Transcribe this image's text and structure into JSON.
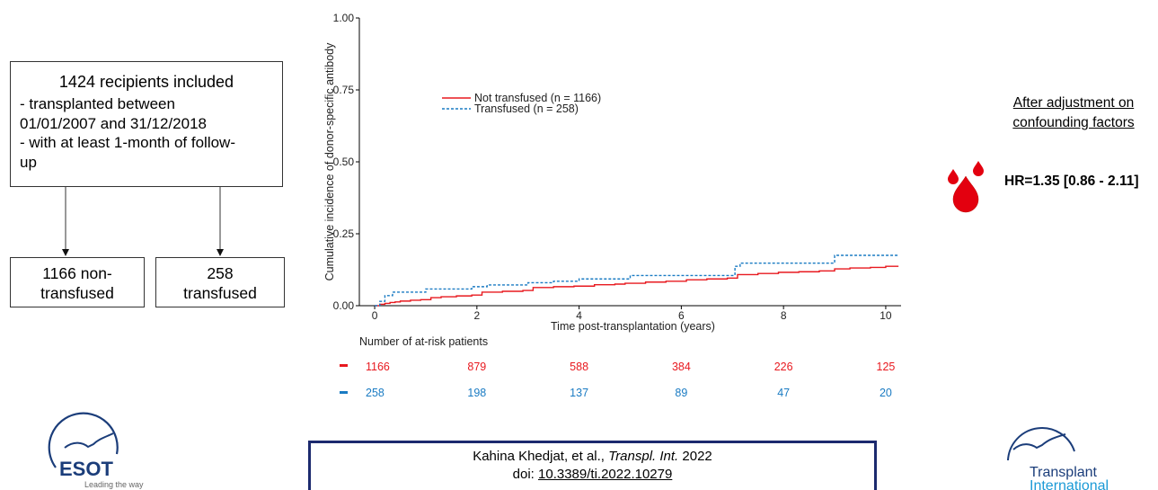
{
  "flow": {
    "included": {
      "title": "1424 recipients included",
      "lines": [
        "- transplanted between",
        "01/01/2007 and 31/12/2018",
        "- with at least 1-month of follow-",
        "up"
      ]
    },
    "nontransfused": {
      "line1": "1166 non-",
      "line2": "transfused"
    },
    "transfused": {
      "line1": "258",
      "line2": "transfused"
    }
  },
  "adjustment": {
    "line1": "After adjustment on",
    "line2": "confounding factors",
    "hr_text": "HR=1.35 [0.86 - 2.11]"
  },
  "citation": {
    "authors": "Kahina Khedjat, et al., ",
    "journal": "Transpl. Int.",
    "year": " 2022",
    "doi_prefix": "doi: ",
    "doi": "10.3389/ti.2022.10279"
  },
  "logos": {
    "esot_text": "ESOT",
    "esot_tagline": "Leading the way",
    "ti_line1": "Transplant",
    "ti_line2": "International"
  },
  "colors": {
    "not_transfused": "#e8191f",
    "transfused": "#1a7bc3",
    "drop": "#e3000f"
  },
  "chart_data": {
    "type": "line",
    "xlabel": "Time post-transplantation (years)",
    "ylabel": "Cumulative incidence of donor-specific antibody",
    "xlim": [
      -0.3,
      10.3
    ],
    "ylim": [
      0,
      1
    ],
    "xticks": [
      0,
      2,
      4,
      6,
      8,
      10
    ],
    "yticks": [
      0,
      0.25,
      0.5,
      0.75,
      1.0
    ],
    "ytick_labels": [
      "0.00",
      "0.25",
      "0.50",
      "0.75",
      "1.00"
    ],
    "legend_position": "upper-left",
    "series": [
      {
        "name": "Not transfused (n = 1166)",
        "style": "solid",
        "x": [
          0,
          0.1,
          0.2,
          0.3,
          0.4,
          0.5,
          0.7,
          0.9,
          1.1,
          1.3,
          1.6,
          1.9,
          2.1,
          2.5,
          2.9,
          3.1,
          3.5,
          3.9,
          4.3,
          4.7,
          4.9,
          5.3,
          5.7,
          6.1,
          6.5,
          6.9,
          7.1,
          7.5,
          7.9,
          8.3,
          8.7,
          9.0,
          9.3,
          9.7,
          10.0
        ],
        "y": [
          0,
          0.005,
          0.008,
          0.011,
          0.013,
          0.016,
          0.019,
          0.021,
          0.028,
          0.031,
          0.034,
          0.037,
          0.047,
          0.05,
          0.053,
          0.063,
          0.066,
          0.068,
          0.073,
          0.075,
          0.078,
          0.082,
          0.085,
          0.09,
          0.093,
          0.096,
          0.108,
          0.112,
          0.116,
          0.118,
          0.121,
          0.128,
          0.131,
          0.133,
          0.137
        ]
      },
      {
        "name": "Transfused (n = 258)",
        "style": "dashed",
        "x": [
          0,
          0.1,
          0.2,
          0.35,
          1.0,
          1.9,
          2.2,
          3.0,
          3.5,
          4.0,
          5.0,
          6.0,
          6.8,
          7.05,
          7.15,
          9.0,
          10.0
        ],
        "y": [
          0,
          0.015,
          0.035,
          0.047,
          0.058,
          0.066,
          0.072,
          0.08,
          0.085,
          0.093,
          0.105,
          0.105,
          0.105,
          0.137,
          0.148,
          0.175,
          0.175
        ]
      }
    ],
    "risk_table": {
      "title": "Number of at-risk patients",
      "times": [
        0,
        2,
        4,
        6,
        8,
        10
      ],
      "not_transfused": [
        "1166",
        "879",
        "588",
        "384",
        "226",
        "125"
      ],
      "transfused": [
        "258",
        "198",
        "137",
        "89",
        "47",
        "20"
      ]
    }
  }
}
